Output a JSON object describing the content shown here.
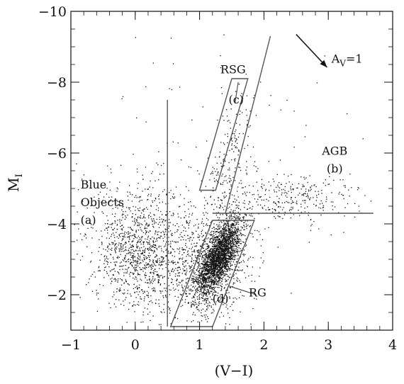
{
  "chart_data": {
    "type": "scatter",
    "title": "",
    "xlabel": "(V−I)",
    "ylabel": "M",
    "ylabel_sub": "I",
    "xlim": [
      -1,
      4
    ],
    "ylim": [
      -1,
      -10
    ],
    "x_ticks": [
      -1,
      0,
      1,
      2,
      3,
      4
    ],
    "x_tick_labels": [
      "−1",
      "0",
      "1",
      "2",
      "3",
      "4"
    ],
    "y_ticks": [
      -2,
      -4,
      -6,
      -8,
      -10
    ],
    "y_tick_labels": [
      "−2",
      "−4",
      "−6",
      "−8",
      "−10"
    ],
    "grid": false,
    "point_color": "#111111",
    "line_color": "#555555",
    "regions": [
      {
        "id": "a",
        "label_lines": [
          "Blue",
          "Objects",
          "(a)"
        ],
        "label_pos": [
          -0.85,
          -5.0
        ]
      },
      {
        "id": "b",
        "label_lines": [
          "AGB",
          "(b)"
        ],
        "label_pos": [
          3.1,
          -5.95
        ]
      },
      {
        "id": "c",
        "label_lines": [
          "(c)"
        ],
        "label_pos": [
          1.45,
          -7.4
        ]
      },
      {
        "id": "d",
        "label_lines": [
          "(d)"
        ],
        "label_pos": [
          1.2,
          -1.78
        ]
      }
    ],
    "annotations": [
      {
        "text": "RSG",
        "x": 1.52,
        "y": -8.25
      },
      {
        "text": "RG",
        "x": 1.9,
        "y": -1.95
      }
    ],
    "extinction_vector": {
      "label": "A",
      "label_sub": "V",
      "label_value": "=1",
      "from": [
        2.5,
        -9.35
      ],
      "to": [
        2.98,
        -8.42
      ]
    },
    "boundary_lines": [
      [
        [
          0.5,
          -7.5
        ],
        [
          0.5,
          -1.1
        ]
      ],
      [
        [
          1.2,
          -4.3
        ],
        [
          3.7,
          -4.3
        ]
      ],
      [
        [
          1.4,
          -4.3
        ],
        [
          2.1,
          -9.3
        ]
      ]
    ],
    "boundary_boxes": [
      [
        [
          1.0,
          -4.95
        ],
        [
          1.5,
          -8.1
        ],
        [
          1.75,
          -8.1
        ],
        [
          1.25,
          -4.95
        ]
      ],
      [
        [
          0.55,
          -1.1
        ],
        [
          1.2,
          -4.1
        ],
        [
          1.85,
          -4.1
        ],
        [
          1.2,
          -1.1
        ]
      ]
    ],
    "point_clouds": [
      {
        "name": "RG clump",
        "n": 2300,
        "center": [
          1.3,
          -3.1
        ],
        "sd": [
          0.17,
          0.55
        ],
        "rho": -0.7
      },
      {
        "name": "RG spread",
        "n": 900,
        "center": [
          1.15,
          -2.8
        ],
        "sd": [
          0.35,
          0.75
        ],
        "rho": -0.3
      },
      {
        "name": "blue",
        "n": 1300,
        "center": [
          0.1,
          -3.3
        ],
        "sd": [
          0.38,
          0.85
        ],
        "rho": 0.0
      },
      {
        "name": "AGB",
        "n": 350,
        "center": [
          2.3,
          -4.75
        ],
        "sd": [
          0.55,
          0.38
        ],
        "rho": 0.0
      },
      {
        "name": "RSG",
        "n": 160,
        "center": [
          1.45,
          -5.9
        ],
        "sd": [
          0.2,
          0.9
        ],
        "rho": -0.7
      },
      {
        "name": "bright",
        "n": 70,
        "center": [
          1.3,
          -6.8
        ],
        "sd": [
          0.9,
          1.3
        ],
        "rho": 0.0
      }
    ]
  }
}
